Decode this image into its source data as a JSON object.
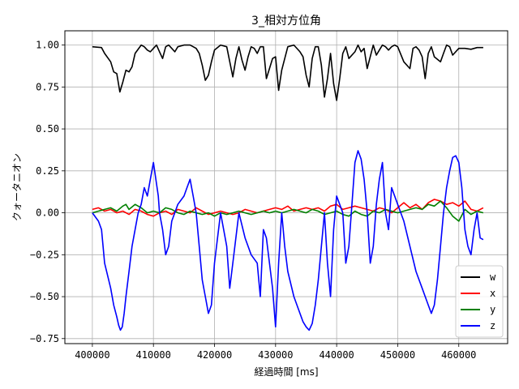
{
  "chart_data": {
    "type": "line",
    "title": "3_相対方位角",
    "xlabel": "経過時間 [ms]",
    "ylabel": "クォータニオン",
    "xlim": [
      395500,
      468000
    ],
    "ylim": [
      -0.78,
      1.085
    ],
    "xticks": [
      400000,
      410000,
      420000,
      430000,
      440000,
      450000,
      460000
    ],
    "yticks": [
      -0.75,
      -0.5,
      -0.25,
      0.0,
      0.25,
      0.5,
      0.75,
      1.0
    ],
    "ytick_labels": [
      "−0.75",
      "−0.50",
      "−0.25",
      "0.00",
      "0.25",
      "0.50",
      "0.75",
      "1.00"
    ],
    "grid": true,
    "legend_position": "lower-right",
    "series": [
      {
        "name": "w",
        "color": "#000000",
        "x": [
          400000,
          401500,
          402000,
          403000,
          403500,
          404000,
          404500,
          405000,
          405500,
          406000,
          406500,
          407000,
          408000,
          408500,
          409000,
          409500,
          410000,
          410500,
          411000,
          411500,
          412000,
          412500,
          413000,
          413500,
          414000,
          415000,
          416000,
          417000,
          417500,
          418000,
          418500,
          419000,
          419500,
          420000,
          421000,
          422000,
          423000,
          423500,
          424000,
          424500,
          425000,
          425500,
          426000,
          426500,
          427000,
          427500,
          428000,
          428500,
          429000,
          429500,
          430000,
          430500,
          431000,
          432000,
          433000,
          434000,
          434500,
          435000,
          435500,
          436000,
          436500,
          437000,
          437500,
          438000,
          438500,
          439000,
          439500,
          440000,
          440500,
          441000,
          441500,
          442000,
          443000,
          443500,
          444000,
          444500,
          445000,
          446000,
          446500,
          447000,
          447500,
          448000,
          448500,
          449000,
          449500,
          450000,
          451000,
          452000,
          452500,
          453000,
          453500,
          454000,
          454500,
          455000,
          455500,
          456000,
          457000,
          457500,
          458000,
          458500,
          459000,
          460000,
          461000,
          462000,
          463000,
          464000
        ],
        "y": [
          0.99,
          0.985,
          0.95,
          0.9,
          0.84,
          0.83,
          0.72,
          0.78,
          0.85,
          0.84,
          0.87,
          0.95,
          1.0,
          0.99,
          0.97,
          0.96,
          0.98,
          1.0,
          0.96,
          0.92,
          0.99,
          1.0,
          0.98,
          0.96,
          0.99,
          1.0,
          1.0,
          0.98,
          0.95,
          0.88,
          0.79,
          0.82,
          0.9,
          0.97,
          1.0,
          0.99,
          0.81,
          0.92,
          0.99,
          0.91,
          0.85,
          0.93,
          0.99,
          0.98,
          0.95,
          0.99,
          0.99,
          0.8,
          0.86,
          0.92,
          0.93,
          0.73,
          0.85,
          0.99,
          1.0,
          0.96,
          0.93,
          0.82,
          0.75,
          0.92,
          0.99,
          0.99,
          0.88,
          0.69,
          0.8,
          0.95,
          0.77,
          0.67,
          0.8,
          0.95,
          0.99,
          0.92,
          0.96,
          1.0,
          0.96,
          0.98,
          0.86,
          1.0,
          0.94,
          0.97,
          1.0,
          0.99,
          0.97,
          0.99,
          1.0,
          0.99,
          0.9,
          0.86,
          0.98,
          0.99,
          0.97,
          0.93,
          0.8,
          0.95,
          0.99,
          0.93,
          0.9,
          0.95,
          1.0,
          0.99,
          0.94,
          0.98,
          0.98,
          0.975,
          0.985,
          0.985
        ]
      },
      {
        "name": "x",
        "color": "#ff0000",
        "x": [
          400000,
          401000,
          402000,
          403000,
          404000,
          405000,
          406000,
          407000,
          408000,
          409000,
          410000,
          411000,
          412000,
          413000,
          414000,
          415000,
          416000,
          417000,
          418000,
          419000,
          420000,
          421000,
          422000,
          423000,
          424000,
          425000,
          426000,
          427000,
          428000,
          429000,
          430000,
          431000,
          432000,
          433000,
          434000,
          435000,
          436000,
          437000,
          438000,
          439000,
          440000,
          441000,
          442000,
          443000,
          444000,
          445000,
          446000,
          447000,
          448000,
          449000,
          450000,
          451000,
          452000,
          453000,
          454000,
          455000,
          456000,
          457000,
          458000,
          459000,
          460000,
          461000,
          462000,
          463000,
          464000
        ],
        "y": [
          0.02,
          0.03,
          0.01,
          0.02,
          0.0,
          0.01,
          -0.01,
          0.02,
          0.01,
          -0.01,
          -0.02,
          0.0,
          0.01,
          -0.01,
          0.02,
          0.01,
          0.0,
          0.03,
          0.01,
          -0.01,
          0.0,
          0.01,
          0.0,
          -0.01,
          0.0,
          0.02,
          0.01,
          0.0,
          0.01,
          0.02,
          0.03,
          0.02,
          0.04,
          0.01,
          0.02,
          0.03,
          0.02,
          0.03,
          0.01,
          0.04,
          0.05,
          0.02,
          0.03,
          0.04,
          0.03,
          0.02,
          0.01,
          0.03,
          0.02,
          0.0,
          0.03,
          0.06,
          0.03,
          0.05,
          0.02,
          0.06,
          0.08,
          0.07,
          0.05,
          0.06,
          0.04,
          0.07,
          0.02,
          0.01,
          0.03
        ]
      },
      {
        "name": "y",
        "color": "#008000",
        "x": [
          400000,
          401000,
          402000,
          403000,
          404000,
          405000,
          405500,
          406000,
          407000,
          408000,
          409000,
          410000,
          411000,
          412000,
          413000,
          414000,
          415000,
          416000,
          417000,
          418000,
          419000,
          420000,
          421000,
          422000,
          423000,
          424000,
          425000,
          426000,
          427000,
          428000,
          429000,
          430000,
          431000,
          432000,
          433000,
          434000,
          435000,
          436000,
          437000,
          438000,
          439000,
          440000,
          441000,
          442000,
          443000,
          444000,
          445000,
          446000,
          447000,
          448000,
          449000,
          450000,
          451000,
          452000,
          453000,
          454000,
          455000,
          456000,
          457000,
          458000,
          459000,
          460000,
          461000,
          462000,
          463000,
          464000
        ],
        "y": [
          0.0,
          0.01,
          0.02,
          0.03,
          0.01,
          0.04,
          0.05,
          0.02,
          0.05,
          0.03,
          0.0,
          0.01,
          0.0,
          0.03,
          0.02,
          0.0,
          -0.01,
          0.01,
          0.0,
          -0.01,
          0.0,
          -0.02,
          0.0,
          -0.01,
          0.0,
          0.01,
          0.0,
          -0.01,
          0.0,
          0.01,
          0.0,
          0.01,
          0.0,
          0.01,
          0.02,
          0.01,
          0.0,
          0.02,
          0.01,
          -0.01,
          0.0,
          0.01,
          -0.01,
          -0.02,
          0.01,
          -0.01,
          -0.02,
          0.01,
          0.0,
          0.02,
          0.01,
          0.0,
          0.01,
          0.02,
          0.03,
          0.02,
          0.05,
          0.04,
          0.07,
          0.03,
          -0.02,
          -0.05,
          0.02,
          -0.01,
          0.01,
          0.0
        ]
      },
      {
        "name": "z",
        "color": "#0000ff",
        "x": [
          400000,
          401000,
          401500,
          402000,
          403000,
          403500,
          404000,
          404300,
          404600,
          404900,
          405200,
          405500,
          406000,
          406500,
          407000,
          407500,
          408000,
          408500,
          409000,
          409500,
          410000,
          410400,
          410800,
          411000,
          411500,
          412000,
          412500,
          413000,
          414000,
          415000,
          415500,
          416000,
          416500,
          417000,
          417500,
          418000,
          418500,
          419000,
          419500,
          420000,
          421000,
          422000,
          422500,
          423000,
          424000,
          425000,
          426000,
          427000,
          427500,
          428000,
          428500,
          429000,
          429500,
          430000,
          430500,
          431000,
          431500,
          432000,
          433000,
          434000,
          434500,
          435000,
          435500,
          436000,
          436500,
          437000,
          437500,
          438000,
          438500,
          439000,
          439500,
          440000,
          440500,
          441000,
          441500,
          442000,
          442500,
          443000,
          443500,
          444000,
          444500,
          445000,
          445500,
          446000,
          446500,
          447000,
          447500,
          448000,
          448500,
          449000,
          450000,
          451000,
          452000,
          453000,
          454000,
          455000,
          455500,
          456000,
          456500,
          457000,
          457500,
          458000,
          458500,
          459000,
          459500,
          460000,
          460500,
          461000,
          461500,
          462000,
          462500,
          463000,
          463500,
          464000
        ],
        "y": [
          0.0,
          -0.05,
          -0.1,
          -0.3,
          -0.45,
          -0.55,
          -0.62,
          -0.67,
          -0.7,
          -0.68,
          -0.6,
          -0.5,
          -0.35,
          -0.2,
          -0.1,
          0.0,
          0.05,
          0.15,
          0.1,
          0.2,
          0.3,
          0.2,
          0.1,
          0.0,
          -0.1,
          -0.25,
          -0.2,
          -0.05,
          0.05,
          0.1,
          0.15,
          0.2,
          0.1,
          0.0,
          -0.2,
          -0.4,
          -0.5,
          -0.6,
          -0.55,
          -0.3,
          0.0,
          -0.2,
          -0.45,
          -0.3,
          0.0,
          -0.15,
          -0.25,
          -0.3,
          -0.5,
          -0.1,
          -0.15,
          -0.3,
          -0.45,
          -0.68,
          -0.3,
          0.0,
          -0.2,
          -0.35,
          -0.5,
          -0.6,
          -0.65,
          -0.68,
          -0.7,
          -0.66,
          -0.55,
          -0.4,
          -0.2,
          0.0,
          -0.3,
          -0.5,
          -0.1,
          0.1,
          0.05,
          0.0,
          -0.3,
          -0.2,
          0.05,
          0.3,
          0.37,
          0.32,
          0.2,
          0.0,
          -0.3,
          -0.2,
          0.05,
          0.2,
          0.3,
          0.0,
          -0.1,
          0.15,
          0.05,
          -0.05,
          -0.2,
          -0.35,
          -0.45,
          -0.55,
          -0.6,
          -0.55,
          -0.4,
          -0.2,
          0.0,
          0.15,
          0.25,
          0.33,
          0.34,
          0.3,
          0.15,
          -0.1,
          -0.2,
          -0.25,
          -0.1,
          0.0,
          -0.15,
          -0.16
        ]
      }
    ]
  }
}
